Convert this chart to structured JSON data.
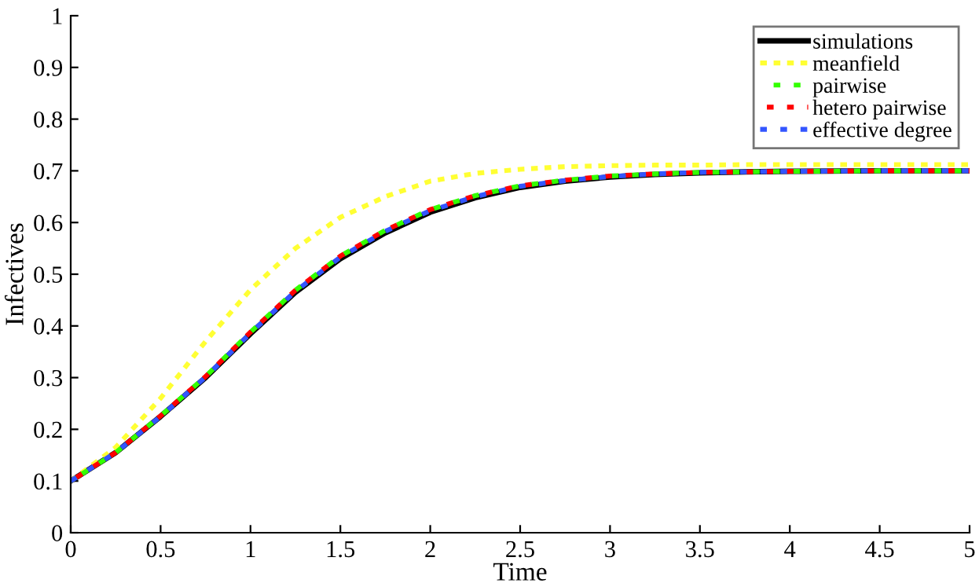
{
  "chart_data": {
    "type": "line",
    "xlabel": "Time",
    "ylabel": "Infectives",
    "x": [
      0,
      0.25,
      0.5,
      0.75,
      1,
      1.25,
      1.5,
      1.75,
      2,
      2.25,
      2.5,
      2.75,
      3,
      3.25,
      3.5,
      3.75,
      4,
      4.5,
      5
    ],
    "series": [
      {
        "name": "simulations",
        "color": "#000000",
        "line_style": "solid",
        "values": [
          0.1,
          0.155,
          0.225,
          0.3,
          0.385,
          0.465,
          0.53,
          0.58,
          0.62,
          0.648,
          0.668,
          0.68,
          0.688,
          0.693,
          0.696,
          0.698,
          0.699,
          0.7,
          0.7
        ]
      },
      {
        "name": "meanfield",
        "color": "#ffff33",
        "line_style": "dashed",
        "values": [
          0.1,
          0.165,
          0.26,
          0.37,
          0.47,
          0.55,
          0.61,
          0.65,
          0.68,
          0.695,
          0.703,
          0.708,
          0.71,
          0.711,
          0.711,
          0.712,
          0.712,
          0.712,
          0.712
        ]
      },
      {
        "name": "pairwise",
        "color": "#33ff00",
        "line_style": "dashed",
        "values": [
          0.1,
          0.155,
          0.226,
          0.302,
          0.388,
          0.469,
          0.535,
          0.585,
          0.625,
          0.652,
          0.671,
          0.682,
          0.69,
          0.694,
          0.697,
          0.698,
          0.699,
          0.7,
          0.7
        ]
      },
      {
        "name": "hetero pairwise",
        "color": "#ff0000",
        "line_style": "dashed",
        "values": [
          0.1,
          0.155,
          0.226,
          0.302,
          0.388,
          0.469,
          0.535,
          0.585,
          0.625,
          0.652,
          0.671,
          0.682,
          0.69,
          0.694,
          0.697,
          0.698,
          0.699,
          0.7,
          0.7
        ]
      },
      {
        "name": "effective degree",
        "color": "#3355ff",
        "line_style": "dashed",
        "values": [
          0.1,
          0.155,
          0.225,
          0.301,
          0.386,
          0.467,
          0.533,
          0.583,
          0.623,
          0.65,
          0.67,
          0.681,
          0.689,
          0.694,
          0.697,
          0.698,
          0.699,
          0.7,
          0.7
        ]
      }
    ],
    "xlim": [
      0,
      5
    ],
    "xticks": [
      0,
      0.5,
      1,
      1.5,
      2,
      2.5,
      3,
      3.5,
      4,
      4.5,
      5
    ],
    "ylim": [
      0,
      1
    ],
    "yticks": [
      0,
      0.1,
      0.2,
      0.3,
      0.4,
      0.5,
      0.6,
      0.7,
      0.8,
      0.9,
      1
    ],
    "grid": false,
    "legend": "top right"
  }
}
